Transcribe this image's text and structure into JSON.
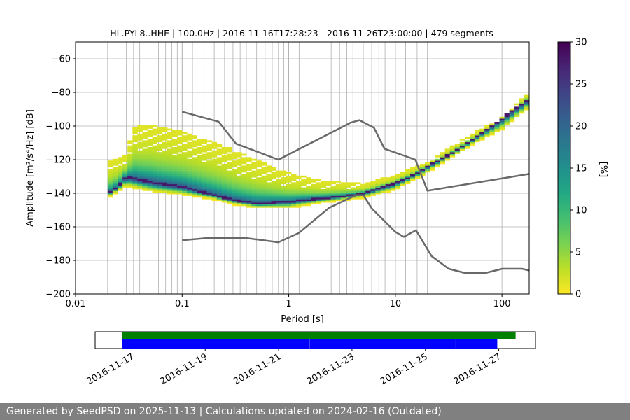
{
  "chart_data": {
    "type": "heatmap",
    "title": "HL.PYL8..HHE | 100.0Hz | 2016-11-16T17:28:23 - 2016-11-26T23:00:00 | 479 segments",
    "xlabel": "Period [s]",
    "ylabel": "Amplitude [m²/s⁴/Hz] [dB]",
    "xscale": "log",
    "xlim": [
      0.01,
      180
    ],
    "ylim": [
      -200,
      -50
    ],
    "xticks": [
      "0.01",
      "0.1",
      "1",
      "10",
      "100"
    ],
    "yticks": [
      "−200",
      "−180",
      "−160",
      "−140",
      "−120",
      "−100",
      "−80",
      "−60"
    ],
    "grid": true,
    "colorbar": {
      "label": "[%]",
      "min": 0,
      "max": 30,
      "ticks": [
        "0",
        "5",
        "10",
        "15",
        "20",
        "25",
        "30"
      ],
      "colormap": "viridis_r"
    },
    "grid_periods": [
      0.02,
      0.025,
      0.03,
      0.035,
      0.04,
      0.05,
      0.06,
      0.07,
      0.08,
      0.09,
      0.1,
      0.125,
      0.16,
      0.2,
      0.25,
      0.3,
      0.35,
      0.4,
      0.5,
      0.6,
      0.7,
      0.8,
      0.9,
      1,
      1.25,
      2,
      2.5,
      3,
      3.5,
      4,
      5,
      6,
      7,
      8,
      10,
      12.5,
      16,
      20
    ],
    "psd_mode": [
      {
        "period": 0.02,
        "db": -140
      },
      {
        "period": 0.025,
        "db": -136
      },
      {
        "period": 0.03,
        "db": -130
      },
      {
        "period": 0.04,
        "db": -132
      },
      {
        "period": 0.06,
        "db": -134
      },
      {
        "period": 0.1,
        "db": -136
      },
      {
        "period": 0.2,
        "db": -141
      },
      {
        "period": 0.3,
        "db": -144
      },
      {
        "period": 0.5,
        "db": -146
      },
      {
        "period": 1,
        "db": -145
      },
      {
        "period": 2,
        "db": -143
      },
      {
        "period": 3,
        "db": -142
      },
      {
        "period": 5,
        "db": -140
      },
      {
        "period": 7,
        "db": -137
      },
      {
        "period": 10,
        "db": -134
      },
      {
        "period": 15,
        "db": -129
      },
      {
        "period": 20,
        "db": -124
      },
      {
        "period": 30,
        "db": -118
      },
      {
        "period": 50,
        "db": -109
      },
      {
        "period": 80,
        "db": -100
      },
      {
        "period": 120,
        "db": -92
      },
      {
        "period": 180,
        "db": -84
      }
    ],
    "psd_upper": [
      {
        "period": 0.02,
        "db": -122
      },
      {
        "period": 0.03,
        "db": -118
      },
      {
        "period": 0.035,
        "db": -101
      },
      {
        "period": 0.05,
        "db": -100
      },
      {
        "period": 0.1,
        "db": -104
      },
      {
        "period": 0.2,
        "db": -110
      },
      {
        "period": 0.3,
        "db": -115
      },
      {
        "period": 0.5,
        "db": -121
      },
      {
        "period": 1,
        "db": -129
      },
      {
        "period": 2,
        "db": -133
      },
      {
        "period": 5,
        "db": -135
      },
      {
        "period": 10,
        "db": -130
      },
      {
        "period": 20,
        "db": -122
      },
      {
        "period": 50,
        "db": -106
      },
      {
        "period": 100,
        "db": -96
      },
      {
        "period": 180,
        "db": -80
      }
    ],
    "psd_lower": [
      {
        "period": 0.02,
        "db": -142
      },
      {
        "period": 0.03,
        "db": -135
      },
      {
        "period": 0.05,
        "db": -138
      },
      {
        "period": 0.1,
        "db": -140
      },
      {
        "period": 0.2,
        "db": -143
      },
      {
        "period": 0.3,
        "db": -146
      },
      {
        "period": 0.5,
        "db": -148
      },
      {
        "period": 1,
        "db": -148
      },
      {
        "period": 2,
        "db": -145
      },
      {
        "period": 5,
        "db": -142
      },
      {
        "period": 10,
        "db": -137
      },
      {
        "period": 20,
        "db": -127
      },
      {
        "period": 50,
        "db": -111
      },
      {
        "period": 100,
        "db": -101
      },
      {
        "period": 180,
        "db": -88
      }
    ],
    "nhnm": [
      {
        "period": 0.1,
        "db": -91.5
      },
      {
        "period": 0.22,
        "db": -97.4
      },
      {
        "period": 0.32,
        "db": -110.5
      },
      {
        "period": 0.8,
        "db": -120
      },
      {
        "period": 3.8,
        "db": -98
      },
      {
        "period": 4.6,
        "db": -96.5
      },
      {
        "period": 6.3,
        "db": -101
      },
      {
        "period": 7.9,
        "db": -113.5
      },
      {
        "period": 15.4,
        "db": -120
      },
      {
        "period": 20,
        "db": -138.5
      },
      {
        "period": 180,
        "db": -128.5
      }
    ],
    "nlnm": [
      {
        "period": 0.1,
        "db": -168
      },
      {
        "period": 0.17,
        "db": -166.7
      },
      {
        "period": 0.4,
        "db": -166.7
      },
      {
        "period": 0.8,
        "db": -169.2
      },
      {
        "period": 1.24,
        "db": -163.7
      },
      {
        "period": 2.4,
        "db": -148.6
      },
      {
        "period": 4.3,
        "db": -141.1
      },
      {
        "period": 5,
        "db": -141.1
      },
      {
        "period": 6,
        "db": -149
      },
      {
        "period": 10,
        "db": -163
      },
      {
        "period": 12,
        "db": -166
      },
      {
        "period": 15.6,
        "db": -162
      },
      {
        "period": 21.9,
        "db": -177.5
      },
      {
        "period": 31.6,
        "db": -185
      },
      {
        "period": 45,
        "db": -187.5
      },
      {
        "period": 70,
        "db": -187.5
      },
      {
        "period": 101,
        "db": -185
      },
      {
        "period": 154,
        "db": -185
      },
      {
        "period": 180,
        "db": -186
      }
    ]
  },
  "timeline": {
    "date_ticks": [
      "2016-11-17",
      "2016-11-19",
      "2016-11-21",
      "2016-11-23",
      "2016-11-25",
      "2016-11-27"
    ],
    "range": [
      "2016-11-16",
      "2016-11-28"
    ],
    "data_coverage": {
      "start": "2016-11-16T17:28",
      "end": "2016-11-27T11:00",
      "color": "#008000"
    },
    "psd_coverage": {
      "start": "2016-11-16T17:28",
      "end": "2016-11-26T23:00",
      "color": "#0000ff",
      "gaps": [
        "2016-11-18T20:00",
        "2016-11-21T20:00",
        "2016-11-25T20:00"
      ]
    }
  },
  "footer": {
    "text": "Generated by SeedPSD on 2025-11-13 | Calculations updated on 2024-02-16 (Outdated)"
  }
}
